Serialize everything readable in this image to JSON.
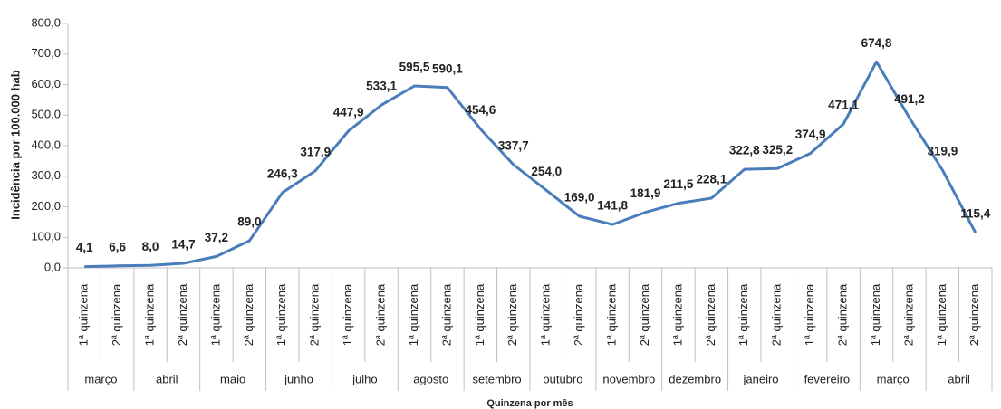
{
  "chart_data": {
    "type": "line",
    "y_label": "Incidência por 100.000 hab",
    "x_label": "Quinzena por mês",
    "categories": [
      "1ª quinzena",
      "2ª quinzena",
      "1ª quinzena",
      "2ª quinzena",
      "1ª quinzena",
      "2ª quinzena",
      "1ª quinzena",
      "2ª quinzena",
      "1ª quinzena",
      "2ª quinzena",
      "1ª quinzena",
      "2ª quinzena",
      "1ª quinzena",
      "2ª quinzena",
      "1ª quinzena",
      "2ª quinzena",
      "1ª quinzena",
      "2ª quinzena",
      "1ª quinzena",
      "2ª quinzena",
      "1ª quinzena",
      "2ª quinzena",
      "1ª quinzena",
      "2ª quinzena",
      "1ª quinzena",
      "2ª quinzena",
      "1ª quinzena",
      "2ª quinzena"
    ],
    "category_groups": [
      "março",
      "abril",
      "maio",
      "junho",
      "julho",
      "agosto",
      "setembro",
      "outubro",
      "novembro",
      "dezembro",
      "janeiro",
      "fevereiro",
      "março",
      "abril"
    ],
    "values": [
      4.1,
      6.6,
      8.0,
      14.7,
      37.2,
      89.0,
      246.3,
      317.9,
      447.9,
      533.1,
      595.5,
      590.1,
      454.6,
      337.7,
      254.0,
      169.0,
      141.8,
      181.9,
      211.5,
      228.1,
      322.8,
      325.2,
      374.9,
      471.1,
      674.8,
      491.2,
      319.9,
      115.4
    ],
    "value_labels": [
      "4,1",
      "6,6",
      "8,0",
      "14,7",
      "37,2",
      "89,0",
      "246,3",
      "317,9",
      "447,9",
      "533,1",
      "595,5",
      "590,1",
      "454,6",
      "337,7",
      "254,0",
      "169,0",
      "141,8",
      "181,9",
      "211,5",
      "228,1",
      "322,8",
      "325,2",
      "374,9",
      "471,1",
      "674,8",
      "491,2",
      "319,9",
      "115,4"
    ],
    "color": "#4a7ebb",
    "ylim": [
      0,
      800
    ],
    "yticks": [
      {
        "value": 0,
        "label": "0,0"
      },
      {
        "value": 100,
        "label": "100,0"
      },
      {
        "value": 200,
        "label": "200,0"
      },
      {
        "value": 300,
        "label": "300,0"
      },
      {
        "value": 400,
        "label": "400,0"
      },
      {
        "value": 500,
        "label": "500,0"
      },
      {
        "value": 600,
        "label": "600,0"
      },
      {
        "value": 700,
        "label": "700,0"
      },
      {
        "value": 800,
        "label": "800,0"
      }
    ],
    "grid": false
  }
}
